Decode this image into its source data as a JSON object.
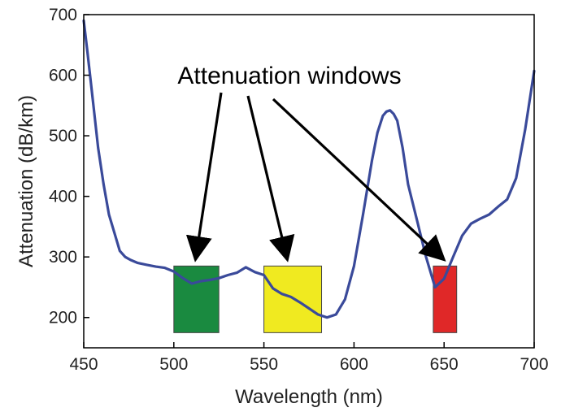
{
  "chart_data": {
    "type": "line",
    "xlabel": "Wavelength (nm)",
    "ylabel": "Attenuation (dB/km)",
    "xlim": [
      450,
      700
    ],
    "ylim": [
      150,
      700
    ],
    "x_ticks": [
      450,
      500,
      550,
      600,
      650,
      700
    ],
    "y_ticks": [
      200,
      300,
      400,
      500,
      600,
      700
    ],
    "x_tick_labels": [
      "450",
      "500",
      "550",
      "600",
      "650",
      "700"
    ],
    "y_tick_labels": [
      "200",
      "300",
      "400",
      "500",
      "600",
      "700"
    ],
    "grid": false,
    "series": [
      {
        "color": "#3a4a9a",
        "x": [
          450,
          452,
          455,
          458,
          461,
          464,
          467,
          470,
          473,
          476,
          480,
          485,
          490,
          495,
          500,
          505,
          510,
          515,
          520,
          525,
          530,
          535,
          540,
          545,
          550,
          555,
          560,
          565,
          570,
          575,
          580,
          585,
          590,
          595,
          600,
          605,
          610,
          613,
          616,
          618,
          620,
          622,
          624,
          627,
          630,
          635,
          640,
          645,
          650,
          655,
          660,
          665,
          670,
          675,
          680,
          685,
          690,
          695,
          700
        ],
        "y": [
          690,
          640,
          560,
          480,
          420,
          370,
          340,
          310,
          300,
          295,
          290,
          287,
          284,
          282,
          276,
          265,
          256,
          260,
          262,
          265,
          270,
          274,
          283,
          275,
          270,
          248,
          239,
          234,
          225,
          215,
          205,
          200,
          205,
          230,
          285,
          370,
          460,
          505,
          533,
          540,
          542,
          536,
          525,
          480,
          420,
          360,
          300,
          250,
          264,
          300,
          335,
          355,
          363,
          370,
          383,
          395,
          430,
          510,
          607
        ]
      }
    ],
    "highlight_regions": [
      {
        "x_start": 500,
        "x_end": 525,
        "y_bottom": 175,
        "y_top": 285,
        "color": "#1a8a40"
      },
      {
        "x_start": 550,
        "x_end": 582,
        "y_bottom": 175,
        "y_top": 285,
        "color": "#f0ea20"
      },
      {
        "x_start": 644,
        "x_end": 657,
        "y_bottom": 175,
        "y_top": 285,
        "color": "#e02828"
      }
    ],
    "annotations": [
      {
        "text": "Attenuation windows",
        "arrow_targets": [
          {
            "x": 512,
            "y": 290
          },
          {
            "x": 563,
            "y": 290
          },
          {
            "x": 650,
            "y": 290
          }
        ]
      }
    ]
  }
}
